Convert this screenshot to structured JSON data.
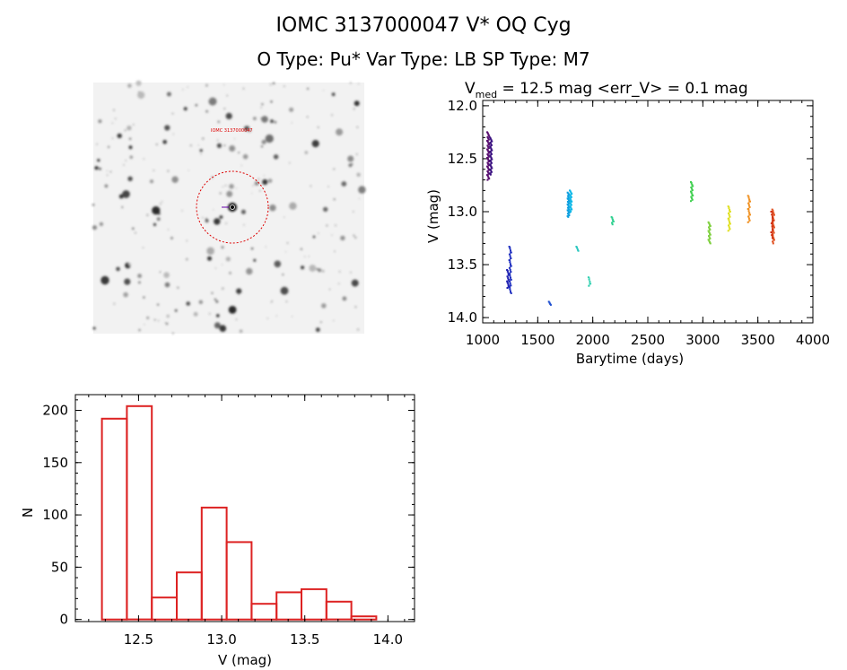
{
  "header": {
    "title_line1": "IOMC 3137000047    V* OQ Cyg",
    "title_line2": "O Type: Pu*  Var Type: LB  SP Type: M7"
  },
  "image_panel": {
    "description_marks": [
      "finder-chart"
    ],
    "target_label": "IOMC 3137000047"
  },
  "colors": {
    "histogram": "#dd2222",
    "circle": "#dd0000",
    "axis": "#000000"
  },
  "chart_data": [
    {
      "type": "scatter",
      "id": "lightcurve",
      "title_prefix": "V",
      "title_sub": "med",
      "title_rest": " = 12.5 mag <err_V> = 0.1 mag",
      "xlabel": "Barytime (days)",
      "ylabel": "V (mag)",
      "xlim": [
        1000,
        4000
      ],
      "ylim": [
        14.05,
        11.95
      ],
      "xticks": [
        1000,
        1500,
        2000,
        2500,
        3000,
        3500,
        4000
      ],
      "yticks": [
        12.0,
        12.5,
        13.0,
        13.5,
        14.0
      ],
      "ytick_labels": [
        "12.0",
        "12.5",
        "13.0",
        "13.5",
        "14.0"
      ],
      "groups": [
        {
          "x": 1050,
          "ymin": 12.25,
          "ymax": 12.7,
          "n": 40,
          "color": "#5a1070"
        },
        {
          "x": 1075,
          "ymin": 12.3,
          "ymax": 12.65,
          "n": 30,
          "color": "#3a1080"
        },
        {
          "x": 1230,
          "ymin": 13.55,
          "ymax": 13.72,
          "n": 12,
          "color": "#2020b0"
        },
        {
          "x": 1250,
          "ymin": 13.33,
          "ymax": 13.77,
          "n": 25,
          "color": "#2030c0"
        },
        {
          "x": 1610,
          "ymin": 13.85,
          "ymax": 13.88,
          "n": 4,
          "color": "#2050d0"
        },
        {
          "x": 1780,
          "ymin": 12.82,
          "ymax": 13.05,
          "n": 30,
          "color": "#10a0e0"
        },
        {
          "x": 1800,
          "ymin": 12.8,
          "ymax": 13.0,
          "n": 20,
          "color": "#10b8e8"
        },
        {
          "x": 1860,
          "ymin": 13.33,
          "ymax": 13.37,
          "n": 4,
          "color": "#30c8c0"
        },
        {
          "x": 1970,
          "ymin": 13.62,
          "ymax": 13.7,
          "n": 5,
          "color": "#30d0b0"
        },
        {
          "x": 2180,
          "ymin": 13.05,
          "ymax": 13.12,
          "n": 6,
          "color": "#30d090"
        },
        {
          "x": 2900,
          "ymin": 12.72,
          "ymax": 12.9,
          "n": 15,
          "color": "#40d050"
        },
        {
          "x": 3060,
          "ymin": 13.1,
          "ymax": 13.3,
          "n": 18,
          "color": "#80d040"
        },
        {
          "x": 3240,
          "ymin": 12.95,
          "ymax": 13.18,
          "n": 15,
          "color": "#e0e020"
        },
        {
          "x": 3420,
          "ymin": 12.85,
          "ymax": 13.1,
          "n": 15,
          "color": "#f09020"
        },
        {
          "x": 3640,
          "ymin": 12.98,
          "ymax": 13.3,
          "n": 20,
          "color": "#e05020"
        },
        {
          "x": 3630,
          "ymin": 13.0,
          "ymax": 13.25,
          "n": 10,
          "color": "#d03010"
        }
      ]
    },
    {
      "type": "bar",
      "id": "histogram",
      "xlabel": "V (mag)",
      "ylabel": "N",
      "xlim": [
        12.12,
        14.16
      ],
      "ylim": [
        -2,
        215
      ],
      "xticks": [
        12.5,
        13.0,
        13.5,
        14.0
      ],
      "xtick_labels": [
        "12.5",
        "13.0",
        "13.5",
        "14.0"
      ],
      "yticks": [
        0,
        50,
        100,
        150,
        200
      ],
      "ytick_labels": [
        "0",
        "50",
        "100",
        "150",
        "200"
      ],
      "bin_edges": [
        12.28,
        12.43,
        12.58,
        12.73,
        12.88,
        13.03,
        13.18,
        13.33,
        13.48,
        13.63,
        13.78,
        13.93
      ],
      "values": [
        192,
        204,
        21,
        45,
        107,
        74,
        15,
        26,
        29,
        17,
        3
      ]
    }
  ]
}
